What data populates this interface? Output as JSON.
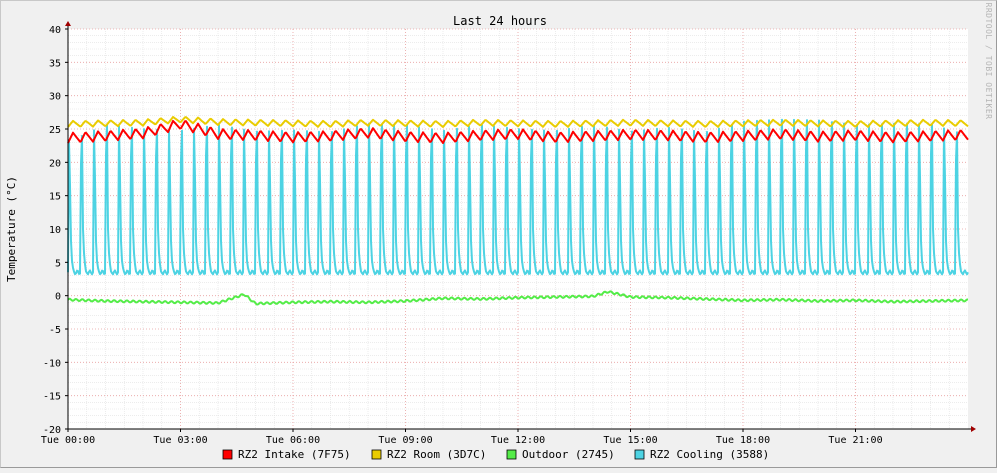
{
  "chart_data": {
    "type": "line",
    "title": "Last 24 hours",
    "ylabel": "Temperature (°C)",
    "watermark": "RRDTOOL / TOBI OETIKER",
    "ylim": [
      -20,
      40
    ],
    "y_ticks": [
      40,
      35,
      30,
      25,
      20,
      15,
      10,
      5,
      0,
      -5,
      -10,
      -15,
      -20
    ],
    "x_range_hours": [
      0,
      24
    ],
    "x_ticks": [
      {
        "hour": 0,
        "label": "Tue 00:00"
      },
      {
        "hour": 3,
        "label": "Tue 03:00"
      },
      {
        "hour": 6,
        "label": "Tue 06:00"
      },
      {
        "hour": 9,
        "label": "Tue 09:00"
      },
      {
        "hour": 12,
        "label": "Tue 12:00"
      },
      {
        "hour": 15,
        "label": "Tue 15:00"
      },
      {
        "hour": 18,
        "label": "Tue 18:00"
      },
      {
        "hour": 21,
        "label": "Tue 21:00"
      }
    ],
    "grid": true,
    "legend_position": "bottom",
    "series": [
      {
        "name": "RZ2 Intake (7F75)",
        "color": "#FF0000",
        "baseline": 23.3,
        "peak": 24.8,
        "cycles": 72,
        "x": [
          0.0,
          1.0,
          2.0,
          3.0,
          4.0,
          5.0,
          6.0,
          7.0,
          8.0,
          9.0,
          10.0,
          11.0,
          12.0,
          13.0,
          14.0,
          15.0,
          16.0,
          17.0,
          18.0,
          19.0,
          20.0,
          21.0,
          22.0,
          23.0,
          24.0
        ],
        "y": [
          23.5,
          23.8,
          24.2,
          25.6,
          24.1,
          23.9,
          23.6,
          23.8,
          24.3,
          23.7,
          23.5,
          23.9,
          24.1,
          23.6,
          23.8,
          24.0,
          23.9,
          23.6,
          23.8,
          24.1,
          23.7,
          23.9,
          23.6,
          23.8,
          24.0
        ]
      },
      {
        "name": "RZ2 Room (3D7C)",
        "color": "#EACC00",
        "baseline": 25.3,
        "peak": 26.1,
        "cycles": 72,
        "x": [
          0.0,
          1.0,
          2.0,
          3.0,
          4.0,
          5.0,
          6.0,
          7.0,
          8.0,
          9.0,
          10.0,
          11.0,
          12.0,
          13.0,
          14.0,
          15.0,
          16.0,
          17.0,
          18.0,
          19.0,
          20.0,
          21.0,
          22.0,
          23.0,
          24.0
        ],
        "y": [
          25.6,
          25.7,
          25.8,
          26.3,
          25.9,
          25.8,
          25.7,
          25.6,
          25.8,
          25.7,
          25.6,
          25.8,
          25.7,
          25.6,
          25.7,
          25.8,
          25.7,
          25.6,
          25.7,
          25.8,
          25.7,
          25.6,
          25.7,
          25.8,
          25.7
        ]
      },
      {
        "name": "Outdoor (2745)",
        "color": "#54EC48",
        "baseline": -0.9,
        "cycles": 0,
        "x": [
          0.0,
          1.0,
          2.0,
          3.0,
          4.0,
          4.7,
          5.0,
          6.0,
          7.0,
          8.0,
          9.0,
          10.0,
          11.0,
          12.0,
          13.0,
          14.0,
          14.4,
          15.0,
          16.0,
          17.0,
          18.0,
          19.0,
          20.0,
          21.0,
          22.0,
          23.0,
          24.0
        ],
        "y": [
          -0.6,
          -0.8,
          -0.9,
          -1.0,
          -1.1,
          0.2,
          -1.2,
          -1.0,
          -0.9,
          -1.0,
          -0.8,
          -0.4,
          -0.5,
          -0.3,
          -0.2,
          -0.1,
          0.6,
          -0.2,
          -0.3,
          -0.5,
          -0.7,
          -0.6,
          -0.8,
          -0.7,
          -0.9,
          -0.8,
          -0.7
        ]
      },
      {
        "name": "RZ2 Cooling (3588)",
        "color": "#4DD3E3",
        "baseline": 3.5,
        "cycles": 72,
        "x": [
          0.0,
          1.0,
          2.0,
          3.0,
          4.0,
          5.0,
          6.0,
          7.0,
          8.0,
          9.0,
          10.0,
          11.0,
          12.0,
          13.0,
          14.0,
          15.0,
          16.0,
          17.0,
          18.0,
          19.0,
          20.0,
          21.0,
          22.0,
          23.0,
          24.0
        ],
        "y": [
          23.0,
          25.6,
          25.0,
          24.7,
          25.6,
          24.6,
          24.8,
          24.5,
          25.8,
          25.6,
          24.7,
          25.6,
          25.0,
          24.7,
          25.6,
          24.6,
          25.2,
          24.5,
          26.1,
          26.4,
          26.3,
          25.6,
          25.8,
          25.7,
          24.0
        ]
      }
    ]
  }
}
